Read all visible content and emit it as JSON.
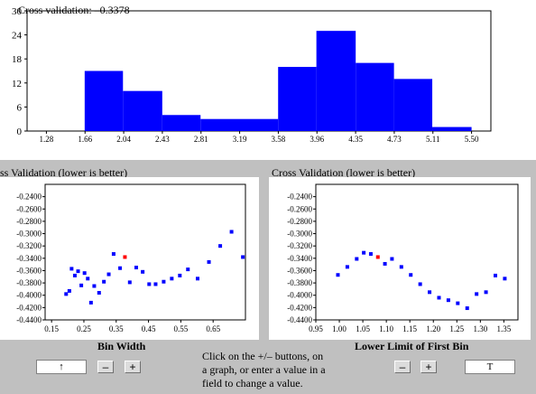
{
  "histogram": {
    "cv_label": "Cross validation: –0.3378",
    "chart_data": {
      "type": "bar",
      "title": "",
      "y_ticks": [
        0,
        6,
        12,
        18,
        24,
        30
      ],
      "ylim": [
        0,
        30
      ],
      "x_tick_labels": [
        "1.28",
        "1.66",
        "2.04",
        "2.43",
        "2.81",
        "3.19",
        "3.58",
        "3.96",
        "4.35",
        "4.73",
        "5.11",
        "5.50"
      ],
      "bins": [
        {
          "start": 1.66,
          "end": 2.04,
          "count": 15
        },
        {
          "start": 2.04,
          "end": 2.43,
          "count": 10
        },
        {
          "start": 2.43,
          "end": 2.81,
          "count": 4
        },
        {
          "start": 2.81,
          "end": 3.58,
          "count": 3
        },
        {
          "start": 3.58,
          "end": 3.96,
          "count": 16
        },
        {
          "start": 3.96,
          "end": 4.35,
          "count": 25
        },
        {
          "start": 4.35,
          "end": 4.73,
          "count": 17
        },
        {
          "start": 4.73,
          "end": 5.11,
          "count": 13
        },
        {
          "start": 5.11,
          "end": 5.5,
          "count": 1
        }
      ],
      "bar_color": "#0000ff"
    }
  },
  "left_plot": {
    "title": "ss Validation (lower is better)",
    "xlabel": "Bin Width",
    "chart_data": {
      "type": "scatter",
      "xlim": [
        0.13,
        0.75
      ],
      "ylim": [
        -0.44,
        -0.22
      ],
      "x_ticks": [
        0.15,
        0.25,
        0.35,
        0.45,
        0.55,
        0.65
      ],
      "x_tick_labels": [
        "0.15",
        "0.25",
        "0.35",
        "0.45",
        "0.55",
        "0.65"
      ],
      "y_ticks": [
        -0.44,
        -0.42,
        -0.4,
        -0.38,
        -0.36,
        -0.34,
        -0.32,
        -0.3,
        -0.28,
        -0.26,
        -0.24
      ],
      "y_tick_labels": [
        "-0.4400",
        "-0.4200",
        "-0.4000",
        "-0.3800",
        "-0.3600",
        "-0.3400",
        "-0.3200",
        "-0.3000",
        "-0.2800",
        "-0.2600",
        "-0.2400"
      ],
      "points": [
        {
          "x": 0.195,
          "y": -0.398
        },
        {
          "x": 0.205,
          "y": -0.393
        },
        {
          "x": 0.212,
          "y": -0.357
        },
        {
          "x": 0.222,
          "y": -0.368
        },
        {
          "x": 0.232,
          "y": -0.361
        },
        {
          "x": 0.242,
          "y": -0.384
        },
        {
          "x": 0.252,
          "y": -0.364
        },
        {
          "x": 0.262,
          "y": -0.373
        },
        {
          "x": 0.272,
          "y": -0.412
        },
        {
          "x": 0.282,
          "y": -0.385
        },
        {
          "x": 0.297,
          "y": -0.396
        },
        {
          "x": 0.312,
          "y": -0.378
        },
        {
          "x": 0.327,
          "y": -0.366
        },
        {
          "x": 0.342,
          "y": -0.333
        },
        {
          "x": 0.362,
          "y": -0.356
        },
        {
          "x": 0.392,
          "y": -0.379
        },
        {
          "x": 0.412,
          "y": -0.355
        },
        {
          "x": 0.432,
          "y": -0.362
        },
        {
          "x": 0.452,
          "y": -0.382
        },
        {
          "x": 0.472,
          "y": -0.382
        },
        {
          "x": 0.497,
          "y": -0.378
        },
        {
          "x": 0.522,
          "y": -0.373
        },
        {
          "x": 0.547,
          "y": -0.368
        },
        {
          "x": 0.572,
          "y": -0.358
        },
        {
          "x": 0.602,
          "y": -0.373
        },
        {
          "x": 0.637,
          "y": -0.346
        },
        {
          "x": 0.672,
          "y": -0.32
        },
        {
          "x": 0.707,
          "y": -0.297
        },
        {
          "x": 0.742,
          "y": -0.338
        }
      ],
      "highlight": {
        "x": 0.377,
        "y": -0.338,
        "color": "#ff0000"
      },
      "point_color": "#0000ff"
    },
    "field_value": "↑",
    "minus_label": "–",
    "plus_label": "+"
  },
  "right_plot": {
    "title": "Cross Validation (lower is better)",
    "xlabel": "Lower Limit of First Bin",
    "chart_data": {
      "type": "scatter",
      "xlim": [
        0.95,
        1.38
      ],
      "ylim": [
        -0.44,
        -0.22
      ],
      "x_ticks": [
        0.95,
        1.0,
        1.05,
        1.1,
        1.15,
        1.2,
        1.25,
        1.3,
        1.35
      ],
      "x_tick_labels": [
        "0.95",
        "1.00",
        "1.05",
        "1.10",
        "1.15",
        "1.20",
        "1.25",
        "1.30",
        "1.35"
      ],
      "y_ticks": [
        -0.44,
        -0.42,
        -0.4,
        -0.38,
        -0.36,
        -0.34,
        -0.32,
        -0.3,
        -0.28,
        -0.26,
        -0.24
      ],
      "y_tick_labels": [
        "-0.4400",
        "-0.4200",
        "-0.4000",
        "-0.3800",
        "-0.3600",
        "-0.3400",
        "-0.3200",
        "-0.3000",
        "-0.2800",
        "-0.2600",
        "-0.2400"
      ],
      "points": [
        {
          "x": 0.997,
          "y": -0.367
        },
        {
          "x": 1.017,
          "y": -0.354
        },
        {
          "x": 1.037,
          "y": -0.341
        },
        {
          "x": 1.052,
          "y": -0.331
        },
        {
          "x": 1.067,
          "y": -0.333
        },
        {
          "x": 1.097,
          "y": -0.349
        },
        {
          "x": 1.112,
          "y": -0.341
        },
        {
          "x": 1.132,
          "y": -0.354
        },
        {
          "x": 1.152,
          "y": -0.367
        },
        {
          "x": 1.172,
          "y": -0.382
        },
        {
          "x": 1.192,
          "y": -0.395
        },
        {
          "x": 1.212,
          "y": -0.404
        },
        {
          "x": 1.232,
          "y": -0.408
        },
        {
          "x": 1.252,
          "y": -0.413
        },
        {
          "x": 1.272,
          "y": -0.421
        },
        {
          "x": 1.292,
          "y": -0.398
        },
        {
          "x": 1.312,
          "y": -0.395
        },
        {
          "x": 1.332,
          "y": -0.368
        },
        {
          "x": 1.352,
          "y": -0.373
        }
      ],
      "highlight": {
        "x": 1.082,
        "y": -0.338,
        "color": "#ff0000"
      },
      "point_color": "#0000ff"
    },
    "field_value": "T",
    "minus_label": "–",
    "plus_label": "+"
  },
  "instructions": [
    "Click on the +/– buttons, on",
    "a graph, or enter a value in a",
    "field to change a value."
  ]
}
